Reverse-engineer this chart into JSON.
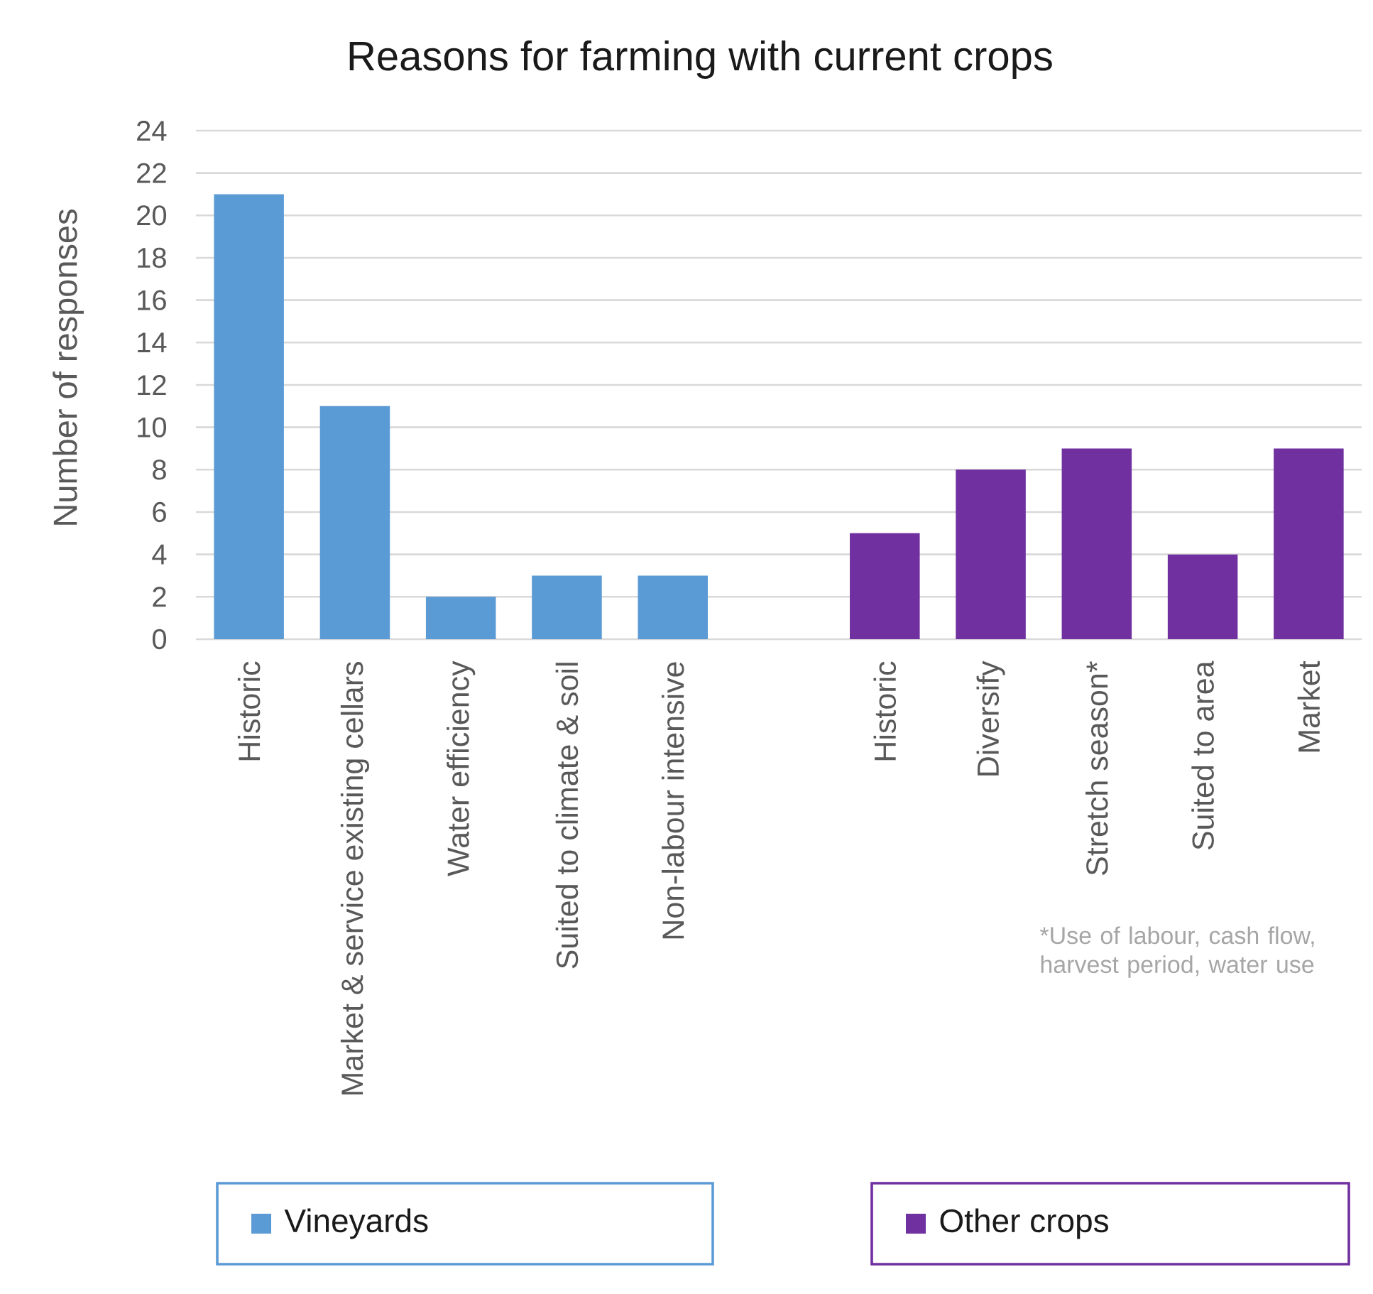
{
  "chart_data": {
    "type": "bar",
    "title": "Reasons for farming with current crops",
    "ylabel": "Number of responses",
    "categories": [
      "Historic",
      "Market & service existing cellars",
      "Water efficiency",
      "Suited to climate & soil",
      "Non-labour intensive",
      null,
      "Historic",
      "Diversify",
      "Stretch season*",
      "Suited to area",
      "Market"
    ],
    "series": [
      {
        "name": "Vineyards",
        "color": "#5b9bd5",
        "values": [
          21,
          11,
          2,
          3,
          3,
          null,
          null,
          null,
          null,
          null,
          null
        ]
      },
      {
        "name": "Other crops",
        "color": "#7030a0",
        "values": [
          null,
          null,
          null,
          null,
          null,
          null,
          5,
          8,
          9,
          4,
          9
        ]
      }
    ],
    "ylim": [
      0,
      24
    ],
    "yticks": [
      0,
      2,
      4,
      6,
      8,
      10,
      12,
      14,
      16,
      18,
      20,
      22,
      24
    ],
    "grid": "y",
    "legend": "bottom",
    "annotations": [
      "*Use of labour, cash flow, harvest period, water use"
    ]
  }
}
